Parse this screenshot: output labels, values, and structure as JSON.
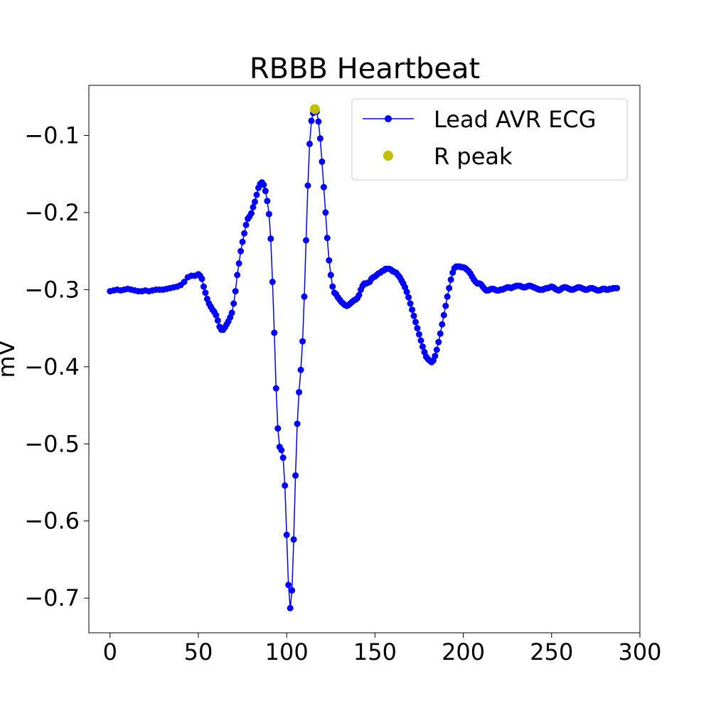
{
  "chart_data": {
    "type": "line",
    "title": "RBBB Heartbeat",
    "xlabel": "",
    "ylabel": "mV",
    "xlim": [
      -12,
      300
    ],
    "ylim": [
      -0.745,
      -0.035
    ],
    "xticks": [
      0,
      50,
      100,
      150,
      200,
      250,
      300
    ],
    "xtick_labels": [
      "0",
      "50",
      "100",
      "150",
      "200",
      "250",
      "300"
    ],
    "yticks": [
      -0.1,
      -0.2,
      -0.3,
      -0.4,
      -0.5,
      -0.6,
      -0.7
    ],
    "ytick_labels": [
      "−0.1",
      "−0.2",
      "−0.3",
      "−0.4",
      "−0.5",
      "−0.6",
      "−0.7"
    ],
    "grid": false,
    "legend_position": "upper-right",
    "colors": {
      "ecg": "#0000ff",
      "rpeak": "#bfbf00"
    },
    "series": [
      {
        "name": "Lead AVR ECG",
        "style": "line-with-markers",
        "points": [
          [
            0,
            -0.302
          ],
          [
            2,
            -0.301
          ],
          [
            4,
            -0.3
          ],
          [
            6,
            -0.301
          ],
          [
            8,
            -0.3
          ],
          [
            10,
            -0.299
          ],
          [
            12,
            -0.3
          ],
          [
            14,
            -0.301
          ],
          [
            16,
            -0.302
          ],
          [
            18,
            -0.302
          ],
          [
            20,
            -0.301
          ],
          [
            22,
            -0.302
          ],
          [
            24,
            -0.301
          ],
          [
            26,
            -0.3
          ],
          [
            28,
            -0.3
          ],
          [
            30,
            -0.3
          ],
          [
            32,
            -0.299
          ],
          [
            34,
            -0.298
          ],
          [
            36,
            -0.297
          ],
          [
            38,
            -0.296
          ],
          [
            40,
            -0.294
          ],
          [
            42,
            -0.29
          ],
          [
            44,
            -0.284
          ],
          [
            46,
            -0.282
          ],
          [
            48,
            -0.282
          ],
          [
            50,
            -0.28
          ],
          [
            51,
            -0.282
          ],
          [
            52,
            -0.286
          ],
          [
            53,
            -0.296
          ],
          [
            54,
            -0.304
          ],
          [
            55,
            -0.312
          ],
          [
            56,
            -0.318
          ],
          [
            57,
            -0.322
          ],
          [
            58,
            -0.326
          ],
          [
            59,
            -0.329
          ],
          [
            60,
            -0.333
          ],
          [
            61,
            -0.34
          ],
          [
            62,
            -0.348
          ],
          [
            63,
            -0.352
          ],
          [
            64,
            -0.352
          ],
          [
            65,
            -0.349
          ],
          [
            66,
            -0.345
          ],
          [
            67,
            -0.341
          ],
          [
            68,
            -0.336
          ],
          [
            69,
            -0.33
          ],
          [
            70,
            -0.318
          ],
          [
            71,
            -0.302
          ],
          [
            72,
            -0.281
          ],
          [
            73,
            -0.266
          ],
          [
            74,
            -0.25
          ],
          [
            75,
            -0.238
          ],
          [
            76,
            -0.227
          ],
          [
            77,
            -0.216
          ],
          [
            78,
            -0.208
          ],
          [
            79,
            -0.205
          ],
          [
            80,
            -0.201
          ],
          [
            81,
            -0.193
          ],
          [
            82,
            -0.186
          ],
          [
            83,
            -0.177
          ],
          [
            84,
            -0.168
          ],
          [
            85,
            -0.163
          ],
          [
            86,
            -0.161
          ],
          [
            87,
            -0.164
          ],
          [
            88,
            -0.172
          ],
          [
            89,
            -0.185
          ],
          [
            90,
            -0.202
          ],
          [
            91,
            -0.234
          ],
          [
            92,
            -0.29
          ],
          [
            93,
            -0.356
          ],
          [
            94,
            -0.428
          ],
          [
            95,
            -0.48
          ],
          [
            96,
            -0.504
          ],
          [
            97,
            -0.508
          ],
          [
            98,
            -0.518
          ],
          [
            99,
            -0.554
          ],
          [
            100,
            -0.618
          ],
          [
            101,
            -0.683
          ],
          [
            102,
            -0.713
          ],
          [
            103,
            -0.69
          ],
          [
            104,
            -0.624
          ],
          [
            105,
            -0.541
          ],
          [
            106,
            -0.474
          ],
          [
            107,
            -0.433
          ],
          [
            108,
            -0.404
          ],
          [
            109,
            -0.367
          ],
          [
            110,
            -0.309
          ],
          [
            111,
            -0.236
          ],
          [
            112,
            -0.165
          ],
          [
            113,
            -0.111
          ],
          [
            114,
            -0.081
          ],
          [
            115,
            -0.071
          ],
          [
            116,
            -0.068
          ],
          [
            117,
            -0.069
          ],
          [
            118,
            -0.082
          ],
          [
            119,
            -0.104
          ],
          [
            120,
            -0.134
          ],
          [
            121,
            -0.167
          ],
          [
            122,
            -0.2
          ],
          [
            123,
            -0.233
          ],
          [
            124,
            -0.262
          ],
          [
            125,
            -0.281
          ],
          [
            126,
            -0.296
          ],
          [
            127,
            -0.304
          ],
          [
            128,
            -0.306
          ],
          [
            129,
            -0.31
          ],
          [
            130,
            -0.313
          ],
          [
            131,
            -0.316
          ],
          [
            132,
            -0.318
          ],
          [
            133,
            -0.32
          ],
          [
            134,
            -0.321
          ],
          [
            135,
            -0.32
          ],
          [
            136,
            -0.318
          ],
          [
            137,
            -0.316
          ],
          [
            138,
            -0.314
          ],
          [
            139,
            -0.313
          ],
          [
            140,
            -0.311
          ],
          [
            141,
            -0.307
          ],
          [
            142,
            -0.3
          ],
          [
            143,
            -0.295
          ],
          [
            144,
            -0.292
          ],
          [
            145,
            -0.292
          ],
          [
            146,
            -0.291
          ],
          [
            147,
            -0.29
          ],
          [
            148,
            -0.286
          ],
          [
            149,
            -0.284
          ],
          [
            150,
            -0.283
          ],
          [
            151,
            -0.281
          ],
          [
            152,
            -0.279
          ],
          [
            153,
            -0.278
          ],
          [
            154,
            -0.276
          ],
          [
            155,
            -0.275
          ],
          [
            156,
            -0.273
          ],
          [
            157,
            -0.273
          ],
          [
            158,
            -0.273
          ],
          [
            159,
            -0.274
          ],
          [
            160,
            -0.276
          ],
          [
            161,
            -0.277
          ],
          [
            162,
            -0.278
          ],
          [
            163,
            -0.281
          ],
          [
            164,
            -0.284
          ],
          [
            165,
            -0.288
          ],
          [
            166,
            -0.292
          ],
          [
            167,
            -0.297
          ],
          [
            168,
            -0.303
          ],
          [
            169,
            -0.31
          ],
          [
            170,
            -0.318
          ],
          [
            171,
            -0.326
          ],
          [
            172,
            -0.334
          ],
          [
            173,
            -0.342
          ],
          [
            174,
            -0.35
          ],
          [
            175,
            -0.358
          ],
          [
            176,
            -0.366
          ],
          [
            177,
            -0.374
          ],
          [
            178,
            -0.381
          ],
          [
            179,
            -0.387
          ],
          [
            180,
            -0.39
          ],
          [
            181,
            -0.392
          ],
          [
            182,
            -0.394
          ],
          [
            183,
            -0.392
          ],
          [
            184,
            -0.386
          ],
          [
            185,
            -0.378
          ],
          [
            186,
            -0.368
          ],
          [
            187,
            -0.357
          ],
          [
            188,
            -0.345
          ],
          [
            189,
            -0.333
          ],
          [
            190,
            -0.321
          ],
          [
            191,
            -0.309
          ],
          [
            192,
            -0.298
          ],
          [
            193,
            -0.287
          ],
          [
            194,
            -0.278
          ],
          [
            195,
            -0.272
          ],
          [
            196,
            -0.27
          ],
          [
            197,
            -0.27
          ],
          [
            198,
            -0.27
          ],
          [
            199,
            -0.271
          ],
          [
            200,
            -0.271
          ],
          [
            201,
            -0.272
          ],
          [
            202,
            -0.274
          ],
          [
            203,
            -0.276
          ],
          [
            204,
            -0.279
          ],
          [
            205,
            -0.283
          ],
          [
            206,
            -0.287
          ],
          [
            207,
            -0.29
          ],
          [
            208,
            -0.292
          ],
          [
            209,
            -0.292
          ],
          [
            210,
            -0.293
          ],
          [
            211,
            -0.296
          ],
          [
            212,
            -0.299
          ],
          [
            213,
            -0.301
          ],
          [
            214,
            -0.301
          ],
          [
            215,
            -0.3
          ],
          [
            216,
            -0.299
          ],
          [
            217,
            -0.299
          ],
          [
            218,
            -0.3
          ],
          [
            219,
            -0.301
          ],
          [
            220,
            -0.301
          ],
          [
            221,
            -0.3
          ],
          [
            222,
            -0.3
          ],
          [
            223,
            -0.299
          ],
          [
            224,
            -0.298
          ],
          [
            225,
            -0.297
          ],
          [
            226,
            -0.297
          ],
          [
            227,
            -0.298
          ],
          [
            228,
            -0.297
          ],
          [
            229,
            -0.296
          ],
          [
            230,
            -0.295
          ],
          [
            231,
            -0.295
          ],
          [
            232,
            -0.295
          ],
          [
            233,
            -0.296
          ],
          [
            234,
            -0.297
          ],
          [
            235,
            -0.297
          ],
          [
            236,
            -0.296
          ],
          [
            237,
            -0.295
          ],
          [
            238,
            -0.295
          ],
          [
            239,
            -0.296
          ],
          [
            240,
            -0.297
          ],
          [
            241,
            -0.298
          ],
          [
            242,
            -0.299
          ],
          [
            243,
            -0.3
          ],
          [
            244,
            -0.3
          ],
          [
            245,
            -0.3
          ],
          [
            246,
            -0.299
          ],
          [
            247,
            -0.298
          ],
          [
            248,
            -0.298
          ],
          [
            249,
            -0.297
          ],
          [
            250,
            -0.296
          ],
          [
            251,
            -0.297
          ],
          [
            252,
            -0.299
          ],
          [
            253,
            -0.3
          ],
          [
            254,
            -0.301
          ],
          [
            255,
            -0.3
          ],
          [
            256,
            -0.298
          ],
          [
            257,
            -0.297
          ],
          [
            258,
            -0.297
          ],
          [
            259,
            -0.298
          ],
          [
            260,
            -0.299
          ],
          [
            261,
            -0.3
          ],
          [
            262,
            -0.3
          ],
          [
            263,
            -0.299
          ],
          [
            264,
            -0.298
          ],
          [
            265,
            -0.297
          ],
          [
            266,
            -0.297
          ],
          [
            267,
            -0.298
          ],
          [
            268,
            -0.299
          ],
          [
            269,
            -0.3
          ],
          [
            270,
            -0.3
          ],
          [
            271,
            -0.299
          ],
          [
            272,
            -0.298
          ],
          [
            273,
            -0.298
          ],
          [
            274,
            -0.299
          ],
          [
            275,
            -0.3
          ],
          [
            276,
            -0.301
          ],
          [
            277,
            -0.301
          ],
          [
            278,
            -0.3
          ],
          [
            279,
            -0.299
          ],
          [
            280,
            -0.299
          ],
          [
            281,
            -0.3
          ],
          [
            282,
            -0.3
          ],
          [
            283,
            -0.299
          ],
          [
            284,
            -0.299
          ],
          [
            285,
            -0.298
          ],
          [
            286,
            -0.298
          ],
          [
            287,
            -0.298
          ]
        ]
      },
      {
        "name": "R peak",
        "style": "marker",
        "points": [
          [
            116,
            -0.066
          ]
        ]
      }
    ]
  }
}
